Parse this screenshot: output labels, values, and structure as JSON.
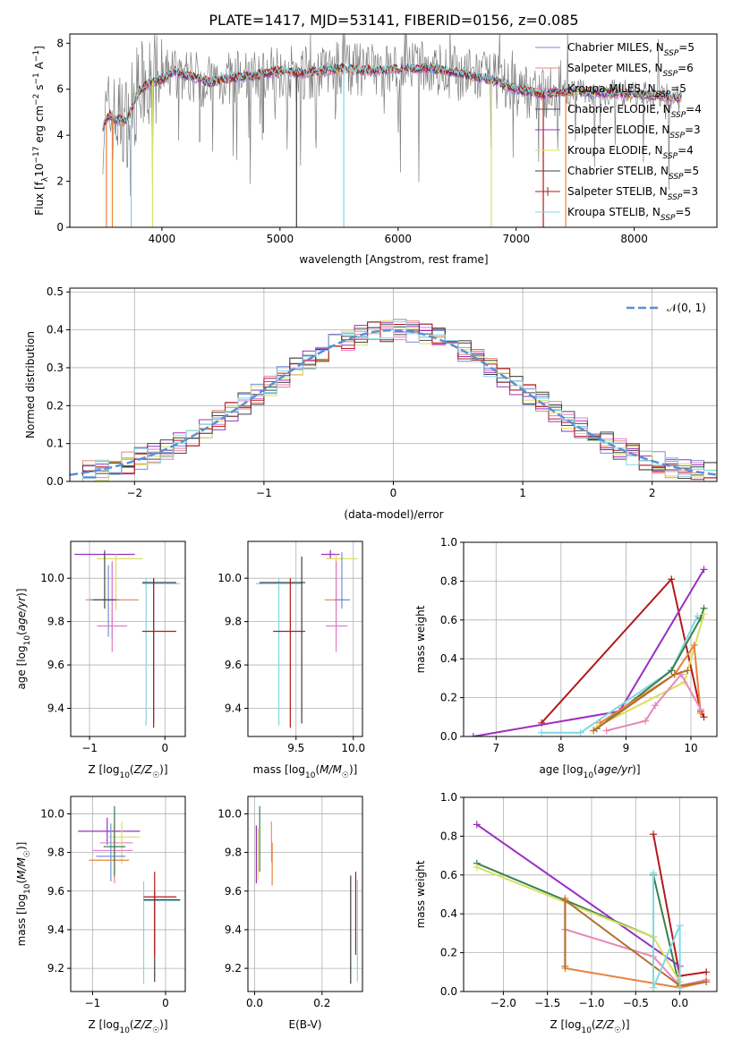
{
  "figure_title": "PLATE=1417, MJD=53141, FIBERID=0156, z=0.085",
  "series_colors": [
    "#6f8fdc",
    "#e88a74",
    "#e07ccc",
    "#4a4a4a",
    "#9b30c0",
    "#d8e060",
    "#404040",
    "#b31a1a",
    "#80d8e0"
  ],
  "extra_colors": {
    "cyan": "#7fd7dd",
    "orange": "#e8823a",
    "olive": "#a8c040",
    "pink": "#e888b8",
    "brown": "#b07030",
    "green": "#3a8050",
    "dark_red": "#aa1818",
    "purple": "#9a2ab8",
    "teal": "#6aa8a0",
    "gray": "#808080"
  },
  "chart_data": [
    {
      "type": "line",
      "title": "PLATE=1417, MJD=53141, FIBERID=0156, z=0.085",
      "xlabel": "wavelength [Angstrom, rest frame]",
      "ylabel": "Flux [f_λ 10^-17 erg cm^-2 s^-1 A^-1]",
      "xlim": [
        3220,
        8700
      ],
      "ylim": [
        0,
        8.4
      ],
      "xticks": [
        "4000",
        "5000",
        "6000",
        "7000",
        "8000"
      ],
      "yticks": [
        "0",
        "2",
        "4",
        "6",
        "8"
      ],
      "legend": "top-right",
      "series": [
        {
          "name": "Chabrier MILES, N_SSP=5"
        },
        {
          "name": "Salpeter MILES, N_SSP=6"
        },
        {
          "name": "Kroupa MILES, N_SSP=5"
        },
        {
          "name": "Chabrier ELODIE, N_SSP=4"
        },
        {
          "name": "Salpeter ELODIE, N_SSP=3"
        },
        {
          "name": "Kroupa ELODIE, N_SSP=4"
        },
        {
          "name": "Chabrier STELIB, N_SSP=5"
        },
        {
          "name": "Salpeter STELIB, N_SSP=3"
        },
        {
          "name": "Kroupa STELIB, N_SSP=5"
        }
      ],
      "continuum_x": [
        3500,
        3560,
        3600,
        3700,
        3800,
        3900,
        4000,
        4100,
        4200,
        4300,
        4400,
        4600,
        4800,
        5000,
        5200,
        5500,
        5800,
        6000,
        6300,
        6500,
        6800,
        7000,
        7200,
        7500,
        8000,
        8400
      ],
      "continuum_y": [
        4.4,
        4.9,
        4.7,
        4.6,
        5.9,
        6.3,
        6.4,
        6.8,
        6.6,
        6.5,
        6.3,
        6.5,
        6.6,
        6.8,
        6.7,
        6.9,
        6.8,
        6.9,
        6.9,
        6.7,
        6.4,
        6.0,
        5.8,
        5.9,
        5.8,
        5.6
      ],
      "dips": [
        [
          3530,
          0
        ],
        [
          3580,
          0
        ],
        [
          3740,
          0
        ],
        [
          3920,
          0
        ],
        [
          4320,
          3.7
        ],
        [
          4860,
          4.1
        ],
        [
          5140,
          0
        ],
        [
          5540,
          0
        ],
        [
          6790,
          0
        ],
        [
          7230,
          0
        ],
        [
          7420,
          0
        ],
        [
          3920,
          1.9
        ]
      ]
    },
    {
      "type": "line",
      "xlabel": "(data-model)/error",
      "ylabel": "Normed distribution",
      "xlim": [
        -2.5,
        2.5
      ],
      "ylim": [
        0,
        0.51
      ],
      "xticks": [
        "−2",
        "−1",
        "0",
        "1",
        "2"
      ],
      "yticks": [
        "0.0",
        "0.1",
        "0.2",
        "0.3",
        "0.4",
        "0.5"
      ],
      "legend_label": "𝒩(0, 1)",
      "legend": "top-right",
      "curve": "gaussian mean 0 sd 1",
      "bin_width": 0.1
    },
    {
      "type": "scatter",
      "xlabel": "Z [log10(Z/Z☉)]",
      "ylabel": "age [log10(age/yr)]",
      "xlim": [
        -1.25,
        0.27
      ],
      "ylim": [
        9.27,
        10.17
      ],
      "xticks": [
        "−1",
        "0"
      ],
      "yticks": [
        "9.4",
        "9.6",
        "9.8",
        "10.0"
      ],
      "errorbars": [
        {
          "x": -0.8,
          "xlo": -1.2,
          "xhi": -0.4,
          "y": 10.11,
          "ylo": 10.09,
          "yhi": 10.13,
          "c": "#9b30c0"
        },
        {
          "x": -0.65,
          "xlo": -0.9,
          "xhi": -0.3,
          "y": 10.09,
          "ylo": 9.85,
          "yhi": 10.11,
          "c": "#d8e060"
        },
        {
          "x": -0.7,
          "xlo": -1.05,
          "xhi": -0.35,
          "y": 9.9,
          "ylo": 9.72,
          "yhi": 10.08,
          "c": "#e88a74"
        },
        {
          "x": -0.75,
          "xlo": -1.0,
          "xhi": -0.6,
          "y": 9.9,
          "ylo": 9.73,
          "yhi": 10.06,
          "c": "#6f8fdc"
        },
        {
          "x": -0.7,
          "xlo": -0.9,
          "xhi": -0.5,
          "y": 9.78,
          "ylo": 9.66,
          "yhi": 10.07,
          "c": "#e07ccc"
        },
        {
          "x": -0.8,
          "xlo": -0.95,
          "xhi": -0.65,
          "y": 9.9,
          "ylo": 9.86,
          "yhi": 10.12,
          "c": "#4a4a4a"
        },
        {
          "x": -0.25,
          "xlo": -0.3,
          "xhi": 0.2,
          "y": 9.975,
          "ylo": 9.32,
          "yhi": 10.0,
          "c": "#80d8e0"
        },
        {
          "x": -0.15,
          "xlo": -0.3,
          "xhi": 0.15,
          "y": 9.98,
          "ylo": 9.33,
          "yhi": 10.0,
          "c": "#404040"
        },
        {
          "x": -0.15,
          "xlo": -0.3,
          "xhi": 0.15,
          "y": 9.755,
          "ylo": 9.31,
          "yhi": 10.0,
          "c": "#b31a1a"
        }
      ]
    },
    {
      "type": "scatter",
      "xlabel": "mass [log10(M/M☉)]",
      "ylabel": "",
      "xlim": [
        9.08,
        10.08
      ],
      "ylim": [
        9.27,
        10.17
      ],
      "xticks": [
        "9.5",
        "10.0"
      ],
      "yticks": [
        "9.4",
        "9.6",
        "9.8",
        "10.0"
      ],
      "errorbars": [
        {
          "x": 9.8,
          "xlo": 9.72,
          "xhi": 9.88,
          "y": 10.11,
          "ylo": 10.09,
          "yhi": 10.13,
          "c": "#9b30c0"
        },
        {
          "x": 9.85,
          "xlo": 9.76,
          "xhi": 10.04,
          "y": 10.09,
          "ylo": 9.85,
          "yhi": 10.11,
          "c": "#d8e060"
        },
        {
          "x": 9.85,
          "xlo": 9.75,
          "xhi": 9.92,
          "y": 9.9,
          "ylo": 9.72,
          "yhi": 10.08,
          "c": "#e88a74"
        },
        {
          "x": 9.85,
          "xlo": 9.76,
          "xhi": 9.95,
          "y": 9.78,
          "ylo": 9.66,
          "yhi": 10.07,
          "c": "#e07ccc"
        },
        {
          "x": 9.9,
          "xlo": 9.84,
          "xhi": 9.97,
          "y": 9.9,
          "ylo": 9.86,
          "yhi": 10.12,
          "c": "#6f8fdc"
        },
        {
          "x": 9.35,
          "xlo": 9.15,
          "xhi": 9.55,
          "y": 9.975,
          "ylo": 9.32,
          "yhi": 10.0,
          "c": "#80d8e0"
        },
        {
          "x": 9.55,
          "xlo": 9.18,
          "xhi": 9.58,
          "y": 9.98,
          "ylo": 9.33,
          "yhi": 10.1,
          "c": "#404040"
        },
        {
          "x": 9.45,
          "xlo": 9.3,
          "xhi": 9.58,
          "y": 9.755,
          "ylo": 9.31,
          "yhi": 10.0,
          "c": "#b31a1a"
        }
      ]
    },
    {
      "type": "line",
      "xlabel": "age [log10(age/yr)]",
      "ylabel": "mass weight",
      "xlim": [
        6.5,
        10.4
      ],
      "ylim": [
        0,
        1.0
      ],
      "xticks": [
        "7",
        "8",
        "9",
        "10"
      ],
      "yticks": [
        "0.0",
        "0.2",
        "0.4",
        "0.6",
        "0.8",
        "1.0"
      ],
      "series": [
        {
          "c": "#b31a1a",
          "x": [
            7.7,
            9.7,
            10.15,
            10.2
          ],
          "y": [
            0.07,
            0.81,
            0.13,
            0.1
          ]
        },
        {
          "c": "#9b30c0",
          "x": [
            6.65,
            8.9,
            10.2
          ],
          "y": [
            0.0,
            0.13,
            0.86
          ]
        },
        {
          "c": "#80d8e0",
          "x": [
            7.7,
            8.3,
            9.7,
            10.1
          ],
          "y": [
            0.02,
            0.02,
            0.34,
            0.62
          ]
        },
        {
          "c": "#3a8050",
          "x": [
            8.55,
            9.7,
            10.15,
            10.2
          ],
          "y": [
            0.04,
            0.34,
            0.61,
            0.66
          ]
        },
        {
          "c": "#d8e060",
          "x": [
            8.55,
            9.9,
            10.2
          ],
          "y": [
            0.05,
            0.28,
            0.63
          ]
        },
        {
          "c": "#e8823a",
          "x": [
            8.6,
            9.75,
            10.05,
            10.15
          ],
          "y": [
            0.07,
            0.32,
            0.47,
            0.12
          ]
        },
        {
          "c": "#e888b8",
          "x": [
            8.7,
            9.3,
            9.45,
            9.85,
            10.15
          ],
          "y": [
            0.03,
            0.08,
            0.16,
            0.32,
            0.14
          ]
        },
        {
          "c": "#b07030",
          "x": [
            8.5,
            9.75,
            9.95
          ],
          "y": [
            0.03,
            0.32,
            0.34
          ]
        }
      ]
    },
    {
      "type": "scatter",
      "xlabel": "Z [log10(Z/Z☉)]",
      "ylabel": "mass [log10(M/M☉)]",
      "xlim": [
        -1.3,
        0.27
      ],
      "ylim": [
        9.08,
        10.09
      ],
      "xticks": [
        "−1",
        "0"
      ],
      "yticks": [
        "9.2",
        "9.4",
        "9.6",
        "9.8",
        "10.0"
      ],
      "errorbars": [
        {
          "x": -0.8,
          "xlo": -1.2,
          "xhi": -0.35,
          "y": 9.91,
          "ylo": 9.84,
          "yhi": 9.98,
          "c": "#9b30c0"
        },
        {
          "x": -0.6,
          "xlo": -0.8,
          "xhi": -0.35,
          "y": 9.88,
          "ylo": 9.74,
          "yhi": 9.96,
          "c": "#d8e060"
        },
        {
          "x": -0.7,
          "xlo": -0.9,
          "xhi": -0.45,
          "y": 9.85,
          "ylo": 9.67,
          "yhi": 9.93,
          "c": "#e888b8"
        },
        {
          "x": -0.7,
          "xlo": -1.0,
          "xhi": -0.45,
          "y": 9.81,
          "ylo": 9.64,
          "yhi": 9.96,
          "c": "#e07ccc"
        },
        {
          "x": -0.75,
          "xlo": -0.95,
          "xhi": -0.55,
          "y": 9.78,
          "ylo": 9.65,
          "yhi": 9.95,
          "c": "#6f8fdc"
        },
        {
          "x": -0.7,
          "xlo": -1.05,
          "xhi": -0.5,
          "y": 9.76,
          "ylo": 9.67,
          "yhi": 10.0,
          "c": "#e8823a"
        },
        {
          "x": -0.7,
          "xlo": -0.85,
          "xhi": -0.55,
          "y": 9.83,
          "ylo": 9.68,
          "yhi": 10.04,
          "c": "#3a8050"
        },
        {
          "x": -0.3,
          "xlo": -0.3,
          "xhi": 0.2,
          "y": 9.55,
          "ylo": 9.12,
          "yhi": 9.65,
          "c": "#80d8e0"
        },
        {
          "x": -0.15,
          "xlo": -0.3,
          "xhi": 0.2,
          "y": 9.555,
          "ylo": 9.13,
          "yhi": 9.6,
          "c": "#404040"
        },
        {
          "x": -0.15,
          "xlo": -0.3,
          "xhi": 0.15,
          "y": 9.57,
          "ylo": 9.26,
          "yhi": 9.7,
          "c": "#b31a1a"
        }
      ]
    },
    {
      "type": "scatter",
      "xlabel": "E(B-V)",
      "ylabel": "",
      "xlim": [
        -0.02,
        0.32
      ],
      "ylim": [
        9.08,
        10.09
      ],
      "xticks": [
        "0.0",
        "0.2"
      ],
      "yticks": [
        "9.2",
        "9.4",
        "9.6",
        "9.8",
        "10.0"
      ],
      "errorbars": [
        {
          "x": 0.005,
          "ylo": 9.64,
          "yhi": 9.94,
          "c": "#9b30c0"
        },
        {
          "x": 0.01,
          "ylo": 9.66,
          "yhi": 9.93,
          "c": "#d8e060"
        },
        {
          "x": 0.015,
          "ylo": 9.7,
          "yhi": 10.04,
          "c": "#3a8050"
        },
        {
          "x": 0.05,
          "ylo": 9.75,
          "yhi": 9.96,
          "c": "#e888b8"
        },
        {
          "x": 0.052,
          "ylo": 9.63,
          "yhi": 9.85,
          "c": "#e8823a"
        },
        {
          "x": 0.285,
          "ylo": 9.12,
          "yhi": 9.68,
          "c": "#404040"
        },
        {
          "x": 0.3,
          "ylo": 9.27,
          "yhi": 9.7,
          "c": "#b31a1a"
        },
        {
          "x": 0.305,
          "ylo": 9.13,
          "yhi": 9.66,
          "c": "#80d8e0"
        }
      ]
    },
    {
      "type": "line",
      "xlabel": "Z [log10(Z/Z☉)]",
      "ylabel": "mass weight",
      "xlim": [
        -2.45,
        0.42
      ],
      "ylim": [
        0,
        1.0
      ],
      "xticks": [
        "−2.0",
        "−1.5",
        "−1.0",
        "−0.5",
        "0.0"
      ],
      "yticks": [
        "0.0",
        "0.2",
        "0.4",
        "0.6",
        "0.8",
        "1.0"
      ],
      "series": [
        {
          "c": "#b31a1a",
          "x": [
            -0.3,
            0.0,
            0.3
          ],
          "y": [
            0.81,
            0.08,
            0.1
          ]
        },
        {
          "c": "#9b30c0",
          "x": [
            -2.3,
            0.0
          ],
          "y": [
            0.86,
            0.13
          ]
        },
        {
          "c": "#3a8050",
          "x": [
            -2.3,
            -0.3,
            -0.3,
            0.0
          ],
          "y": [
            0.66,
            0.28,
            0.6,
            0.02
          ]
        },
        {
          "c": "#d8e060",
          "x": [
            -2.3,
            -0.3,
            0.0
          ],
          "y": [
            0.64,
            0.28,
            0.05
          ]
        },
        {
          "c": "#e8823a",
          "x": [
            -1.3,
            -1.3,
            -1.3,
            0.0,
            0.3
          ],
          "y": [
            0.48,
            0.32,
            0.12,
            0.02,
            0.05
          ]
        },
        {
          "c": "#e888b8",
          "x": [
            -1.3,
            -0.3,
            0.0,
            0.3
          ],
          "y": [
            0.32,
            0.18,
            0.03,
            0.06
          ]
        },
        {
          "c": "#b07030",
          "x": [
            -1.3,
            -1.3,
            0.0,
            0.3
          ],
          "y": [
            0.13,
            0.47,
            0.03,
            0.05
          ]
        },
        {
          "c": "#80d8e0",
          "x": [
            -0.3,
            -0.3,
            0.0,
            0.0
          ],
          "y": [
            0.61,
            0.02,
            0.34,
            0.02
          ]
        }
      ]
    }
  ]
}
